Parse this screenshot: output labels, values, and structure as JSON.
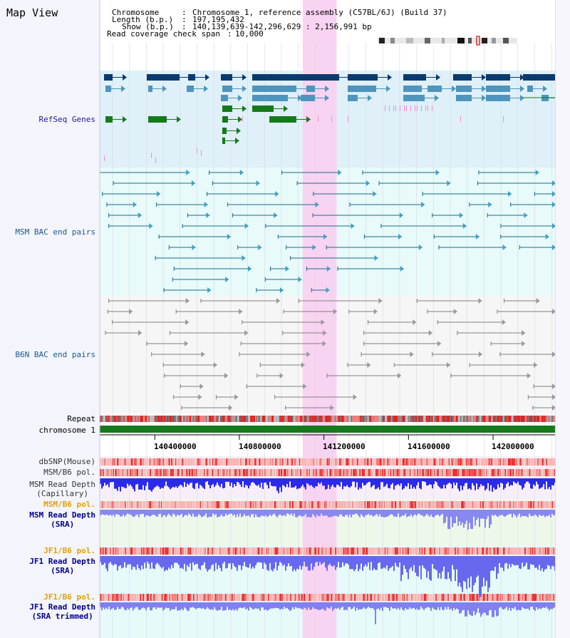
{
  "window": {
    "title": "Map View"
  },
  "header": {
    "chromosome_label": "Chromosome",
    "chromosome_value": "Chromosome 1, reference assembly (C57BL/6J) (Build 37)",
    "length_label": "Length (b.p.)",
    "length_value": "197,195,432",
    "show_label": "Show (b.p.)",
    "show_value": "140,139,639-142,296,629 : 2,156,991 bp",
    "coverage_label": "Read coverage check span",
    "coverage_value": "10,000"
  },
  "tracks": {
    "refseq": "RefSeq Genes",
    "msm_bac": "MSM BAC end pairs",
    "b6n_bac": "B6N BAC end pairs",
    "repeat": "Repeat",
    "chromosome": "chromosome 1",
    "dbsnp": "dbSNP(Mouse)",
    "msm_b6_pol": "MSM/B6 pol.",
    "msm_depth_cap_1": "MSM Read Depth",
    "msm_depth_cap_2": "(Capillary)",
    "msm_b6_pol_2": "MSM/B6 pol.",
    "msm_depth_sra_1": "MSM Read Depth",
    "msm_depth_sra_2": "(SRA)",
    "jf1_b6_pol": "JF1/B6 pol.",
    "jf1_depth_sra_1": "JF1 Read Depth",
    "jf1_depth_sra_2": "(SRA)",
    "jf1_b6_pol_2": "JF1/B6 pol.",
    "jf1_depth_trim_1": "JF1 Read Depth",
    "jf1_depth_trim_2": "(SRA trimmed)"
  },
  "axis": {
    "ticks": [
      "140400000",
      "140800000",
      "141200000",
      "141600000",
      "142000000"
    ]
  },
  "colors": {
    "refseq_bg": "#dff0f8",
    "msm_bg": "#e8fafa",
    "b6n_bg": "#f6f6f6",
    "highlight": "#f9d3f2",
    "gene_dark": "#0a3a6e",
    "gene_mid": "#4d95bd",
    "gene_green": "#157a1a",
    "msm_line": "#1a6b8c",
    "b6n_line": "#808080",
    "pol_red": "#ee3030",
    "depth_blue": "#3838ee",
    "msm_label": "#1a5a8a",
    "refseq_label": "#1a1aa0",
    "orange_label": "#e8a000",
    "navy_label": "#00008b"
  },
  "chart_data": {
    "type": "other",
    "visible_range_bp": [
      140139639,
      142296629
    ],
    "highlight_range_bp": [
      141100000,
      141260000
    ],
    "axis_ticks_bp": [
      140400000,
      140800000,
      141200000,
      141600000,
      142000000
    ]
  }
}
